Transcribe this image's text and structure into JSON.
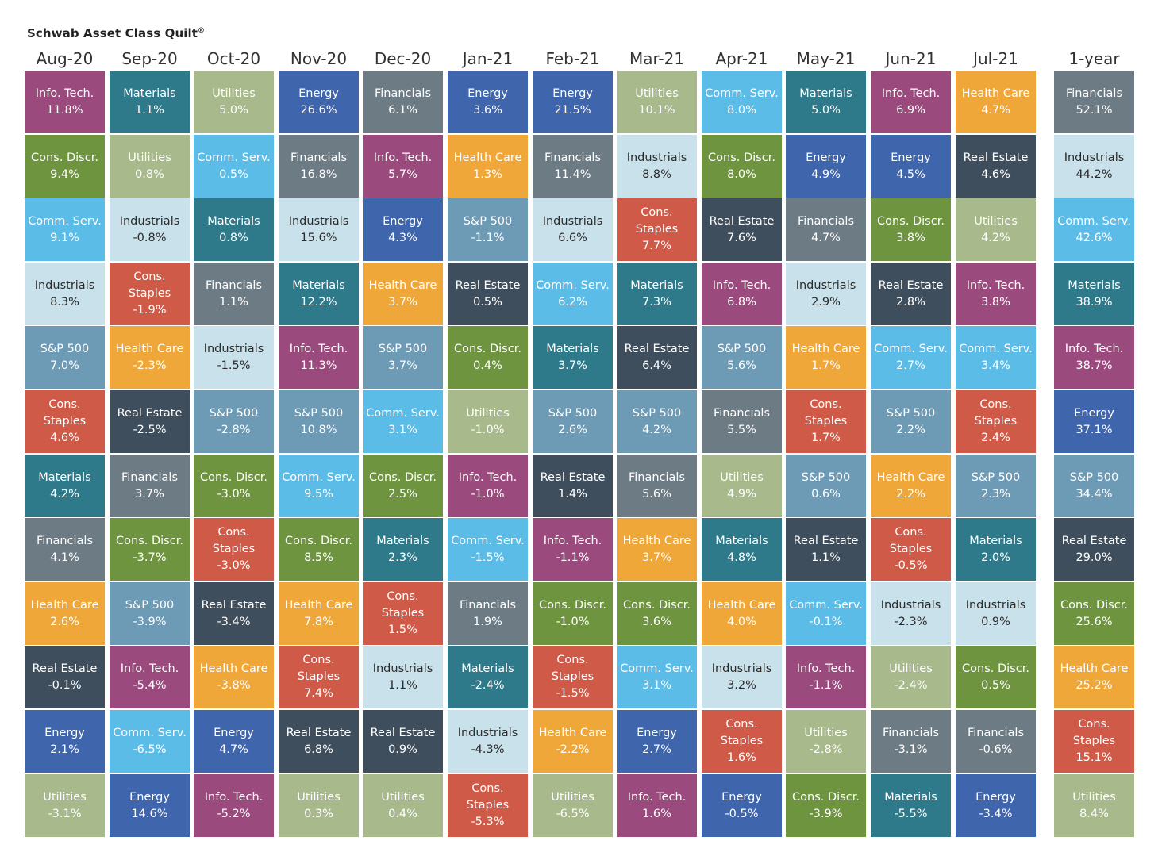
{
  "title": "Schwab Asset Class Quilt",
  "title_mark": "®",
  "colors": {
    "Info. Tech.": "#9a4a7c",
    "Cons. Discr.": "#6f9440",
    "Comm. Serv.": "#5bbce8",
    "Industrials": "#c9e1ea",
    "S&P 500": "#6d9ab5",
    "Cons. Staples": "#cf5a48",
    "Materials": "#2e7a8a",
    "Financials": "#6d7b84",
    "Health Care": "#f0a73a",
    "Real Estate": "#3f4e5c",
    "Energy": "#3f65ad",
    "Utilities": "#a8b98c"
  },
  "chart_data": {
    "type": "table",
    "title": "Schwab Asset Class Quilt",
    "columns": [
      {
        "label": "Aug-20",
        "cells": [
          [
            "Info. Tech.",
            "11.8%"
          ],
          [
            "Cons. Discr.",
            "9.4%"
          ],
          [
            "Comm. Serv.",
            "9.1%"
          ],
          [
            "Industrials",
            "8.3%"
          ],
          [
            "S&P 500",
            "7.0%"
          ],
          [
            "Cons. Staples",
            "4.6%"
          ],
          [
            "Materials",
            "4.2%"
          ],
          [
            "Financials",
            "4.1%"
          ],
          [
            "Health Care",
            "2.6%"
          ],
          [
            "Real Estate",
            "-0.1%"
          ],
          [
            "Energy",
            "2.1%"
          ],
          [
            "Utilities",
            "-3.1%"
          ]
        ]
      },
      {
        "label": "Sep-20",
        "cells": [
          [
            "Materials",
            "1.1%"
          ],
          [
            "Utilities",
            "0.8%"
          ],
          [
            "Industrials",
            "-0.8%"
          ],
          [
            "Cons. Staples",
            "-1.9%"
          ],
          [
            "Health Care",
            "-2.3%"
          ],
          [
            "Real Estate",
            "-2.5%"
          ],
          [
            "Financials",
            "3.7%"
          ],
          [
            "Cons. Discr.",
            "-3.7%"
          ],
          [
            "S&P 500",
            "-3.9%"
          ],
          [
            "Info. Tech.",
            "-5.4%"
          ],
          [
            "Comm. Serv.",
            "-6.5%"
          ],
          [
            "Energy",
            "14.6%"
          ]
        ]
      },
      {
        "label": "Oct-20",
        "cells": [
          [
            "Utilities",
            "5.0%"
          ],
          [
            "Comm. Serv.",
            "0.5%"
          ],
          [
            "Materials",
            "0.8%"
          ],
          [
            "Financials",
            "1.1%"
          ],
          [
            "Industrials",
            "-1.5%"
          ],
          [
            "S&P 500",
            "-2.8%"
          ],
          [
            "Cons. Discr.",
            "-3.0%"
          ],
          [
            "Cons. Staples",
            "-3.0%"
          ],
          [
            "Real Estate",
            "-3.4%"
          ],
          [
            "Health Care",
            "-3.8%"
          ],
          [
            "Energy",
            "4.7%"
          ],
          [
            "Info. Tech.",
            "-5.2%"
          ]
        ]
      },
      {
        "label": "Nov-20",
        "cells": [
          [
            "Energy",
            "26.6%"
          ],
          [
            "Financials",
            "16.8%"
          ],
          [
            "Industrials",
            "15.6%"
          ],
          [
            "Materials",
            "12.2%"
          ],
          [
            "Info. Tech.",
            "11.3%"
          ],
          [
            "S&P 500",
            "10.8%"
          ],
          [
            "Comm. Serv.",
            "9.5%"
          ],
          [
            "Cons. Discr.",
            "8.5%"
          ],
          [
            "Health Care",
            "7.8%"
          ],
          [
            "Cons. Staples",
            "7.4%"
          ],
          [
            "Real Estate",
            "6.8%"
          ],
          [
            "Utilities",
            "0.3%"
          ]
        ]
      },
      {
        "label": "Dec-20",
        "cells": [
          [
            "Financials",
            "6.1%"
          ],
          [
            "Info. Tech.",
            "5.7%"
          ],
          [
            "Energy",
            "4.3%"
          ],
          [
            "Health Care",
            "3.7%"
          ],
          [
            "S&P 500",
            "3.7%"
          ],
          [
            "Comm. Serv.",
            "3.1%"
          ],
          [
            "Cons. Discr.",
            "2.5%"
          ],
          [
            "Materials",
            "2.3%"
          ],
          [
            "Cons. Staples",
            "1.5%"
          ],
          [
            "Industrials",
            "1.1%"
          ],
          [
            "Real Estate",
            "0.9%"
          ],
          [
            "Utilities",
            "0.4%"
          ]
        ]
      },
      {
        "label": "Jan-21",
        "cells": [
          [
            "Energy",
            "3.6%"
          ],
          [
            "Health Care",
            "1.3%"
          ],
          [
            "S&P 500",
            "-1.1%"
          ],
          [
            "Real Estate",
            "0.5%"
          ],
          [
            "Cons. Discr.",
            "0.4%"
          ],
          [
            "Utilities",
            "-1.0%"
          ],
          [
            "Info. Tech.",
            "-1.0%"
          ],
          [
            "Comm. Serv.",
            "-1.5%"
          ],
          [
            "Financials",
            "1.9%"
          ],
          [
            "Materials",
            "-2.4%"
          ],
          [
            "Industrials",
            "-4.3%"
          ],
          [
            "Cons. Staples",
            "-5.3%"
          ]
        ]
      },
      {
        "label": "Feb-21",
        "cells": [
          [
            "Energy",
            "21.5%"
          ],
          [
            "Financials",
            "11.4%"
          ],
          [
            "Industrials",
            "6.6%"
          ],
          [
            "Comm. Serv.",
            "6.2%"
          ],
          [
            "Materials",
            "3.7%"
          ],
          [
            "S&P 500",
            "2.6%"
          ],
          [
            "Real Estate",
            "1.4%"
          ],
          [
            "Info. Tech.",
            "-1.1%"
          ],
          [
            "Cons. Discr.",
            "-1.0%"
          ],
          [
            "Cons. Staples",
            "-1.5%"
          ],
          [
            "Health Care",
            "-2.2%"
          ],
          [
            "Utilities",
            "-6.5%"
          ]
        ]
      },
      {
        "label": "Mar-21",
        "cells": [
          [
            "Utilities",
            "10.1%"
          ],
          [
            "Industrials",
            "8.8%"
          ],
          [
            "Cons. Staples",
            "7.7%"
          ],
          [
            "Materials",
            "7.3%"
          ],
          [
            "Real Estate",
            "6.4%"
          ],
          [
            "S&P 500",
            "4.2%"
          ],
          [
            "Financials",
            "5.6%"
          ],
          [
            "Health Care",
            "3.7%"
          ],
          [
            "Cons. Discr.",
            "3.6%"
          ],
          [
            "Comm. Serv.",
            "3.1%"
          ],
          [
            "Energy",
            "2.7%"
          ],
          [
            "Info. Tech.",
            "1.6%"
          ]
        ]
      },
      {
        "label": "Apr-21",
        "cells": [
          [
            "Comm. Serv.",
            "8.0%"
          ],
          [
            "Cons. Discr.",
            "8.0%"
          ],
          [
            "Real Estate",
            "7.6%"
          ],
          [
            "Info. Tech.",
            "6.8%"
          ],
          [
            "S&P 500",
            "5.6%"
          ],
          [
            "Financials",
            "5.5%"
          ],
          [
            "Utilities",
            "4.9%"
          ],
          [
            "Materials",
            "4.8%"
          ],
          [
            "Health Care",
            "4.0%"
          ],
          [
            "Industrials",
            "3.2%"
          ],
          [
            "Cons. Staples",
            "1.6%"
          ],
          [
            "Energy",
            "-0.5%"
          ]
        ]
      },
      {
        "label": "May-21",
        "cells": [
          [
            "Materials",
            "5.0%"
          ],
          [
            "Energy",
            "4.9%"
          ],
          [
            "Financials",
            "4.7%"
          ],
          [
            "Industrials",
            "2.9%"
          ],
          [
            "Health Care",
            "1.7%"
          ],
          [
            "Cons. Staples",
            "1.7%"
          ],
          [
            "S&P 500",
            "0.6%"
          ],
          [
            "Real Estate",
            "1.1%"
          ],
          [
            "Comm. Serv.",
            "-0.1%"
          ],
          [
            "Info. Tech.",
            "-1.1%"
          ],
          [
            "Utilities",
            "-2.8%"
          ],
          [
            "Cons. Discr.",
            "-3.9%"
          ]
        ]
      },
      {
        "label": "Jun-21",
        "cells": [
          [
            "Info. Tech.",
            "6.9%"
          ],
          [
            "Energy",
            "4.5%"
          ],
          [
            "Cons. Discr.",
            "3.8%"
          ],
          [
            "Real Estate",
            "2.8%"
          ],
          [
            "Comm. Serv.",
            "2.7%"
          ],
          [
            "S&P 500",
            "2.2%"
          ],
          [
            "Health Care",
            "2.2%"
          ],
          [
            "Cons. Staples",
            "-0.5%"
          ],
          [
            "Industrials",
            "-2.3%"
          ],
          [
            "Utilities",
            "-2.4%"
          ],
          [
            "Financials",
            "-3.1%"
          ],
          [
            "Materials",
            "-5.5%"
          ]
        ]
      },
      {
        "label": "Jul-21",
        "cells": [
          [
            "Health Care",
            "4.7%"
          ],
          [
            "Real Estate",
            "4.6%"
          ],
          [
            "Utilities",
            "4.2%"
          ],
          [
            "Info. Tech.",
            "3.8%"
          ],
          [
            "Comm. Serv.",
            "3.4%"
          ],
          [
            "Cons. Staples",
            "2.4%"
          ],
          [
            "S&P 500",
            "2.3%"
          ],
          [
            "Materials",
            "2.0%"
          ],
          [
            "Industrials",
            "0.9%"
          ],
          [
            "Cons. Discr.",
            "0.5%"
          ],
          [
            "Financials",
            "-0.6%"
          ],
          [
            "Energy",
            "-3.4%"
          ]
        ]
      },
      {
        "label": "1-year",
        "cells": [
          [
            "Financials",
            "52.1%"
          ],
          [
            "Industrials",
            "44.2%"
          ],
          [
            "Comm. Serv.",
            "42.6%"
          ],
          [
            "Materials",
            "38.9%"
          ],
          [
            "Info. Tech.",
            "38.7%"
          ],
          [
            "Energy",
            "37.1%"
          ],
          [
            "S&P 500",
            "34.4%"
          ],
          [
            "Real Estate",
            "29.0%"
          ],
          [
            "Cons. Discr.",
            "25.6%"
          ],
          [
            "Health Care",
            "25.2%"
          ],
          [
            "Cons. Staples",
            "15.1%"
          ],
          [
            "Utilities",
            "8.4%"
          ]
        ]
      }
    ]
  }
}
